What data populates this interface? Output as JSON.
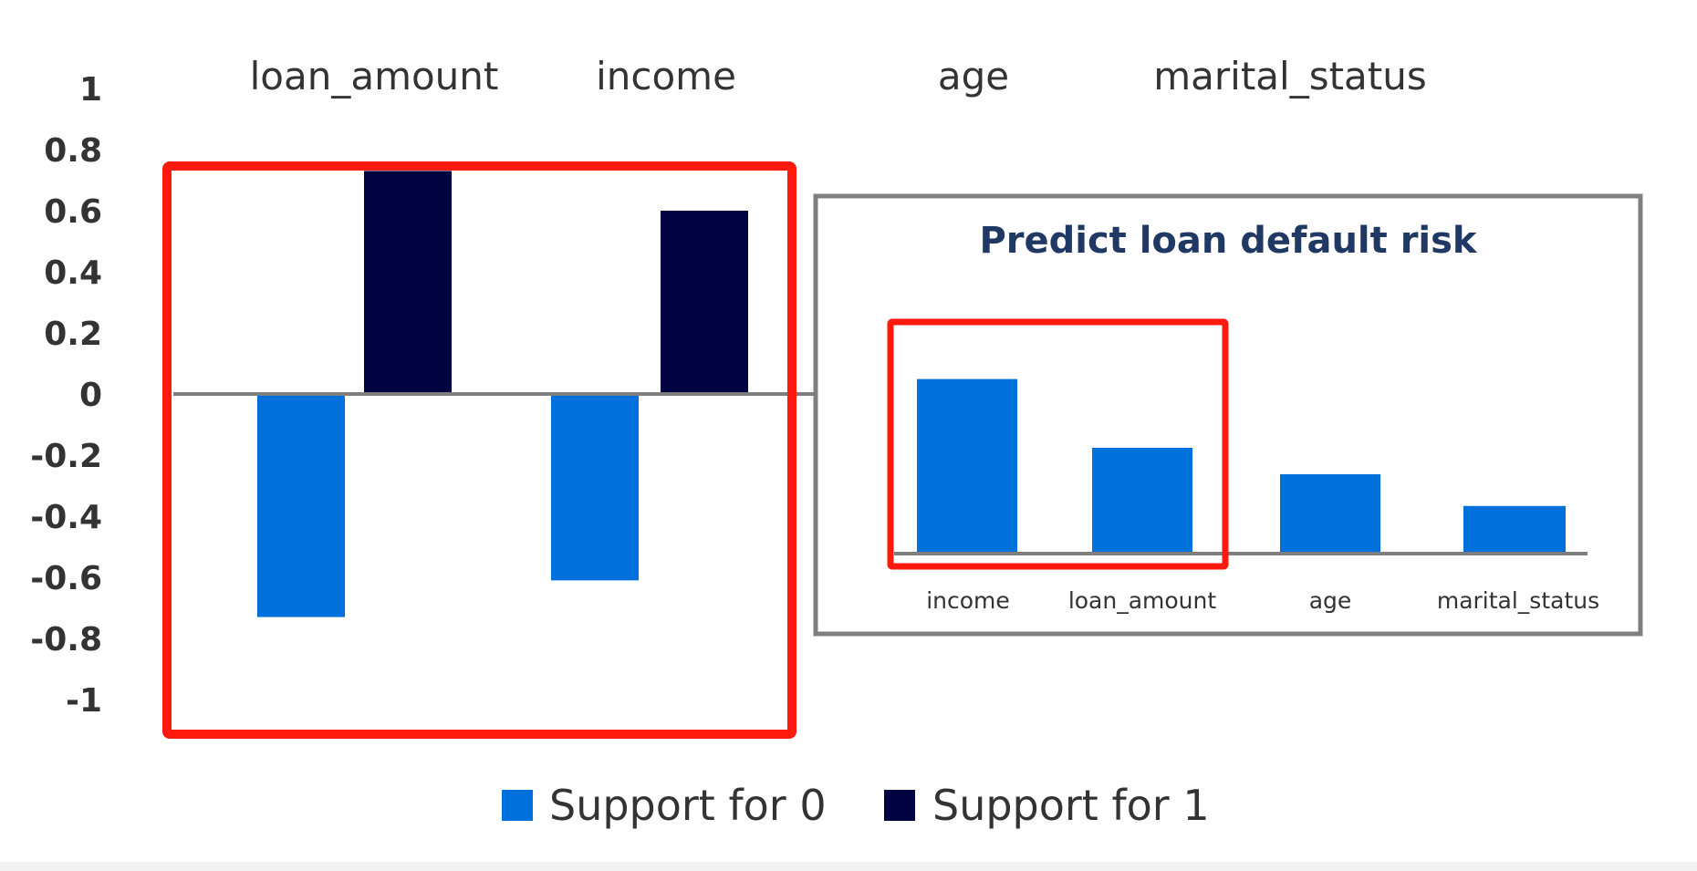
{
  "colors": {
    "support0": "#0070DD",
    "support1": "#020442",
    "highlight": "#FF1A0D",
    "axis": "#7F7F7F",
    "inset_title": "#203864",
    "text": "#333333"
  },
  "chart_data": [
    {
      "type": "bar",
      "categories": [
        "loan_amount",
        "income",
        "age",
        "marital_status"
      ],
      "series": [
        {
          "name": "Support for 0",
          "values": [
            -0.73,
            -0.61,
            null,
            null
          ]
        },
        {
          "name": "Support for 1",
          "values": [
            0.73,
            0.6,
            null,
            null
          ]
        }
      ],
      "ylim": [
        -1,
        1
      ],
      "yticks": [
        "1",
        "0.8",
        "0.6",
        "0.4",
        "0.2",
        "0",
        "-0.2",
        "-0.4",
        "-0.6",
        "-0.8",
        "-1"
      ],
      "legend": [
        "Support for 0",
        "Support for 1"
      ],
      "legend_position": "bottom"
    },
    {
      "type": "bar",
      "title": "Predict loan default risk",
      "categories": [
        "income",
        "loan_amount",
        "age",
        "marital_status"
      ],
      "values": [
        0.33,
        0.2,
        0.15,
        0.09
      ]
    }
  ]
}
